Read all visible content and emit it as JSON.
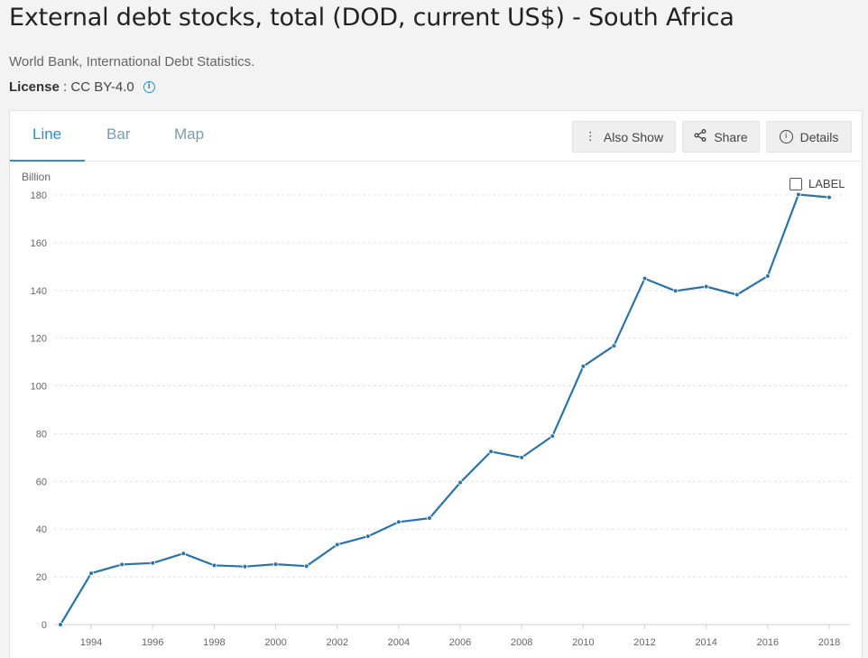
{
  "header": {
    "title": "External debt stocks, total (DOD, current US$) - South Africa",
    "source": "World Bank, International Debt Statistics.",
    "license_label": "License",
    "license_sep": " : ",
    "license_value": "CC BY-4.0",
    "info_icon": "i"
  },
  "tabs": [
    {
      "label": "Line",
      "active": true
    },
    {
      "label": "Bar",
      "active": false
    },
    {
      "label": "Map",
      "active": false
    }
  ],
  "toolbar": {
    "also_show_label": "Also Show",
    "share_label": "Share",
    "details_label": "Details"
  },
  "label_toggle": {
    "label": "LABEL",
    "checked": false
  },
  "colors": {
    "accent": "#2f8fd0",
    "line": "#2b74a9",
    "grid": "#e0e0e0"
  },
  "chart_data": {
    "type": "line",
    "ylabel": "Billion",
    "xlabel": "",
    "ylim": [
      0,
      180
    ],
    "yticks": [
      0,
      20,
      40,
      60,
      80,
      100,
      120,
      140,
      160,
      180
    ],
    "xlim": [
      1993,
      2018
    ],
    "xticks": [
      1994,
      1996,
      1998,
      2000,
      2002,
      2004,
      2006,
      2008,
      2010,
      2012,
      2014,
      2016,
      2018
    ],
    "grid": true,
    "series": [
      {
        "x": [
          1993,
          1994,
          1995,
          1996,
          1997,
          1998,
          1999,
          2000,
          2001,
          2002,
          2003,
          2004,
          2005,
          2006,
          2007,
          2008,
          2009,
          2010,
          2011,
          2012,
          2013,
          2014,
          2015,
          2016,
          2017,
          2018
        ],
        "values": [
          0,
          21.5,
          25.2,
          25.8,
          29.8,
          24.8,
          24.3,
          25.3,
          24.5,
          33.5,
          37,
          43,
          44.6,
          59.5,
          72.5,
          70,
          79,
          108.2,
          116.8,
          145,
          139.8,
          141.6,
          138.2,
          146,
          180.2,
          179
        ]
      }
    ]
  }
}
